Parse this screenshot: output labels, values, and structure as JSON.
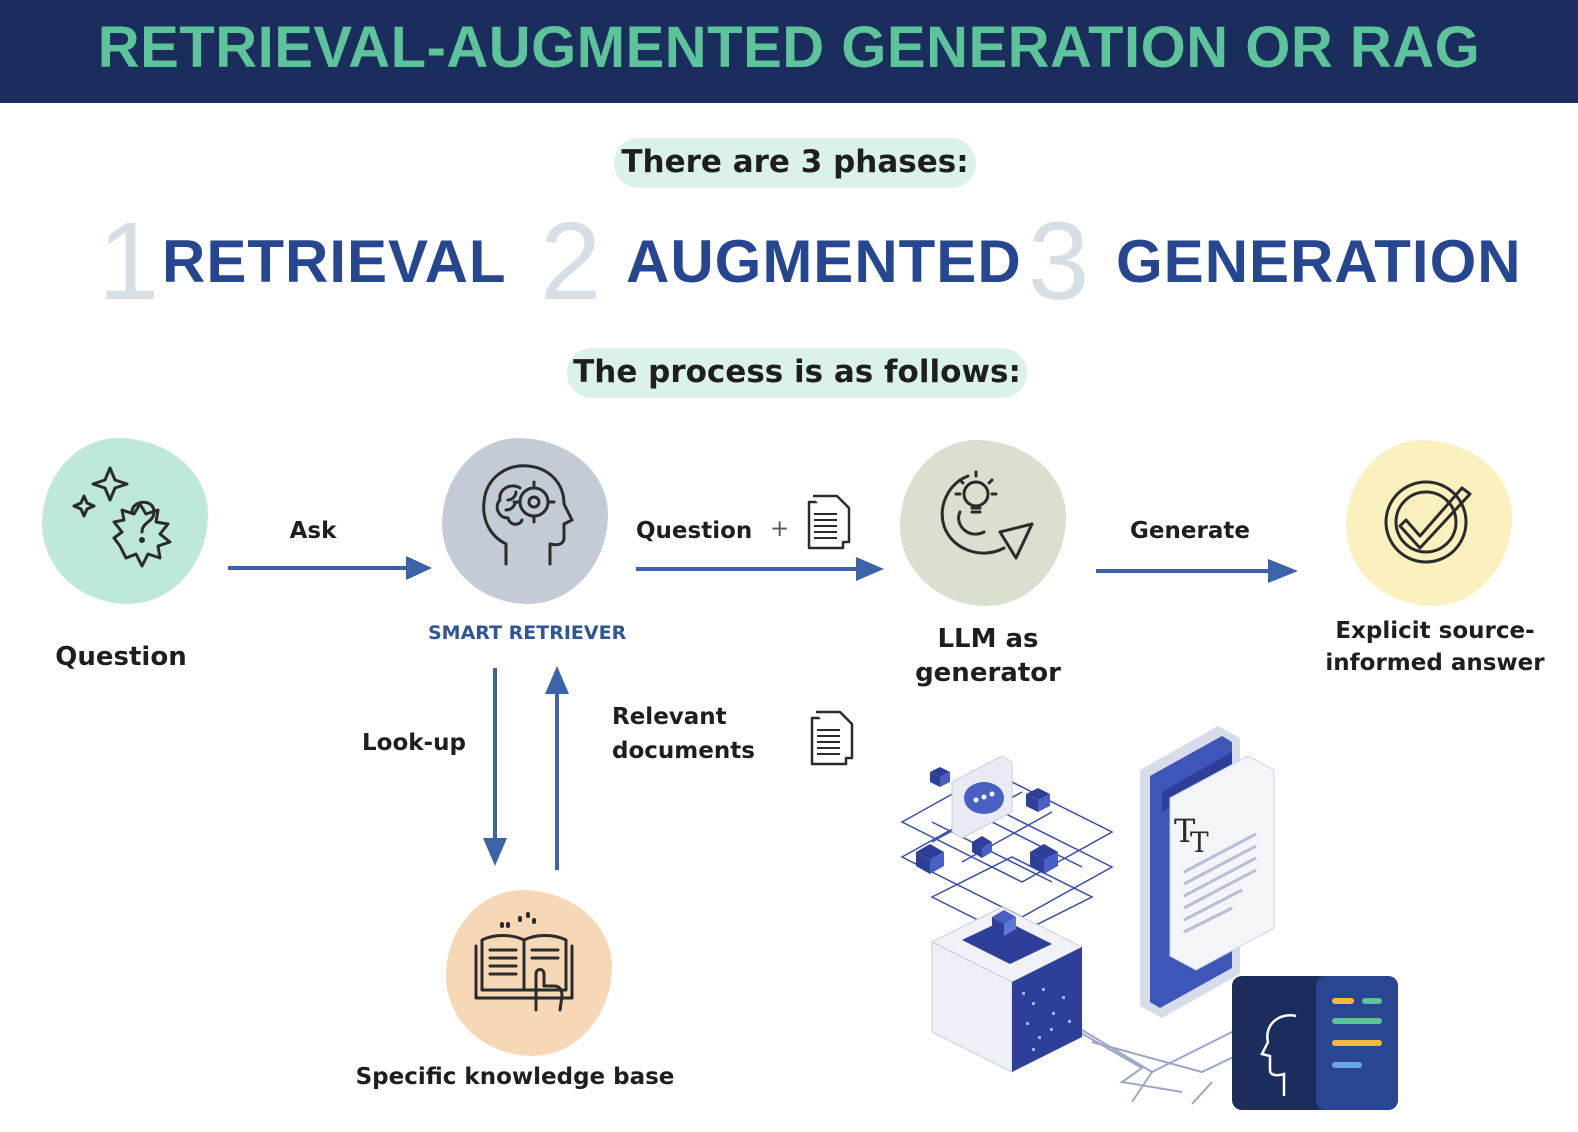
{
  "banner": {
    "title": "RETRIEVAL-AUGMENTED GENERATION OR RAG"
  },
  "intro_pill": "There are 3 phases:",
  "phases": [
    {
      "number": "1",
      "label": "RETRIEVAL"
    },
    {
      "number": "2",
      "label": "AUGMENTED"
    },
    {
      "number": "3",
      "label": "GENERATION"
    }
  ],
  "process_pill": "The process is as follows:",
  "nodes": {
    "question": "Question",
    "retriever": "SMART RETRIEVER",
    "llm_line1": "LLM as",
    "llm_line2": "generator",
    "answer_line1": "Explicit source-",
    "answer_line2": "informed answer",
    "knowledge": "Specific knowledge base"
  },
  "edges": {
    "ask": "Ask",
    "question_plus": "Question",
    "plus": "+",
    "generate": "Generate",
    "lookup": "Look-up",
    "relevant_line1": "Relevant",
    "relevant_line2": "documents"
  },
  "colors": {
    "banner_bg": "#1b2d5c",
    "banner_text": "#5cc39a",
    "phase_word": "#26478f",
    "phase_number": "#d6dee6",
    "pill_bg": "#daf2ea",
    "arrow": "#3a63a8",
    "question_blob": "#bfe8dc",
    "retriever_blob": "#c3ccd6",
    "llm_blob": "#d9e0cf",
    "answer_blob": "#fbf1bf",
    "knowledge_blob": "#f6d8b6"
  },
  "icons": {
    "question": "question-sparkle-icon",
    "retriever": "head-brain-gear-icon",
    "llm": "lightbulb-refresh-icon",
    "answer": "checkmark-circle-icon",
    "knowledge": "book-pointer-icon",
    "document": "document-icon"
  }
}
